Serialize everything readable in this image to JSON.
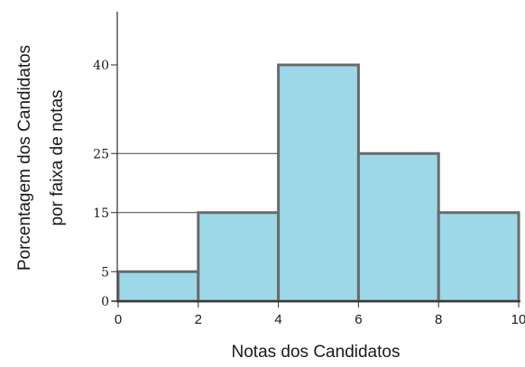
{
  "chart_data": {
    "type": "histogram",
    "xlabel": "Notas dos Candidatos",
    "ylabel_lines": [
      "Porcentagem dos Candidatos",
      "por faixa de notas"
    ],
    "x_ticks": [
      0,
      2,
      4,
      6,
      8,
      10
    ],
    "y_ticks": [
      0,
      5,
      15,
      25,
      40
    ],
    "xlim": [
      0,
      10
    ],
    "ylim": [
      0,
      40
    ],
    "bins": [
      {
        "from": 0,
        "to": 2,
        "value": 5
      },
      {
        "from": 2,
        "to": 4,
        "value": 15
      },
      {
        "from": 4,
        "to": 6,
        "value": 40
      },
      {
        "from": 6,
        "to": 8,
        "value": 25
      },
      {
        "from": 8,
        "to": 10,
        "value": 15
      }
    ],
    "reference_lines_y": [
      25,
      15
    ],
    "colors": {
      "bar_fill": "#9dd8e8",
      "bar_stroke": "#6a6a6a",
      "axis": "#2a2a2a"
    }
  }
}
